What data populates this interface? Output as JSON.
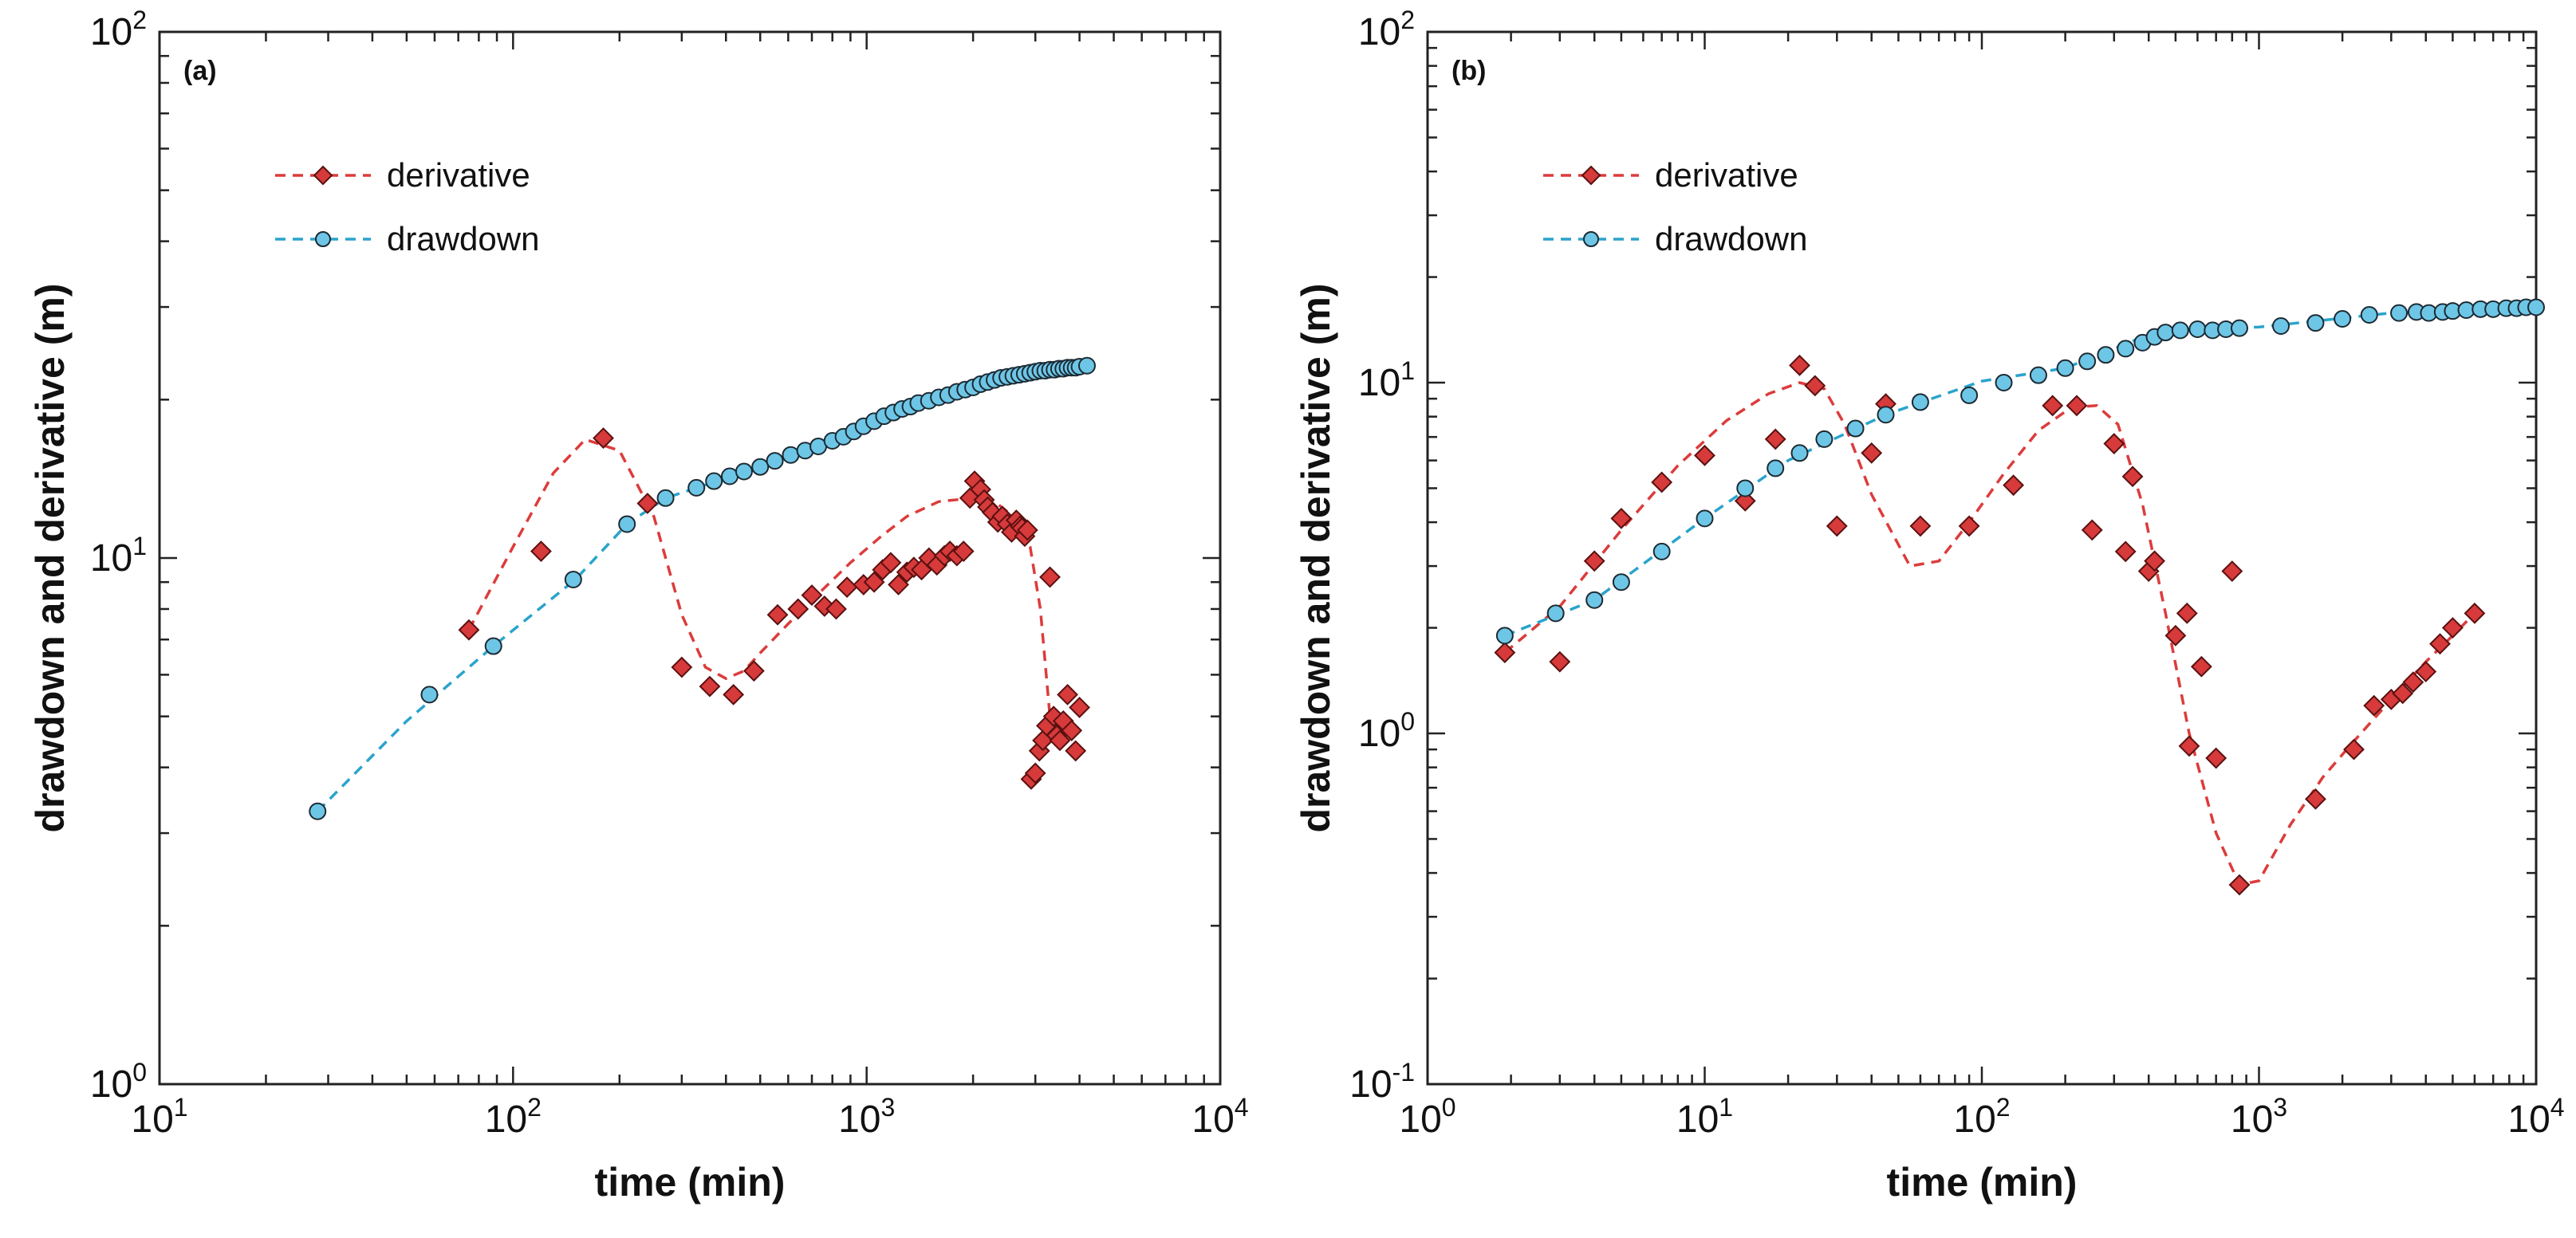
{
  "chart_data": [
    {
      "type": "scatter",
      "panel_label": "(a)",
      "xlabel": "time (min)",
      "ylabel": "drawdown and derivative (m)",
      "xscale": "log",
      "yscale": "log",
      "xlim": [
        10,
        10000
      ],
      "ylim": [
        1,
        100
      ],
      "x_ticks": [
        {
          "base": "10",
          "exp": "1"
        },
        {
          "base": "10",
          "exp": "2"
        },
        {
          "base": "10",
          "exp": "3"
        },
        {
          "base": "10",
          "exp": "4"
        }
      ],
      "y_ticks": [
        {
          "base": "10",
          "exp": "0"
        },
        {
          "base": "10",
          "exp": "1"
        },
        {
          "base": "10",
          "exp": "2"
        }
      ],
      "legend": {
        "position": "top-left",
        "entries": [
          "derivative",
          "drawdown"
        ]
      },
      "series": [
        {
          "name": "derivative",
          "marker": "diamond",
          "color": "#d63a3a",
          "x": [
            75,
            120,
            180,
            240,
            300,
            360,
            420,
            480,
            560,
            640,
            700,
            760,
            820,
            880,
            980,
            1050,
            1110,
            1170,
            1230,
            1300,
            1360,
            1430,
            1500,
            1580,
            1660,
            1720,
            1800,
            1880,
            1960,
            2020,
            2100,
            2150,
            2200,
            2270,
            2350,
            2420,
            2500,
            2570,
            2650,
            2720,
            2750,
            2800,
            2850,
            2920,
            3000,
            3080,
            3150,
            3230,
            3300,
            3380,
            3450,
            3520,
            3600,
            3700,
            3800,
            3900,
            4000
          ],
          "values": [
            7.3,
            10.3,
            16.9,
            12.7,
            6.2,
            5.7,
            5.5,
            6.1,
            7.8,
            8.0,
            8.5,
            8.1,
            8.0,
            8.8,
            8.9,
            9.0,
            9.5,
            9.8,
            8.9,
            9.4,
            9.6,
            9.5,
            10.0,
            9.7,
            10.1,
            10.3,
            10.1,
            10.3,
            13.0,
            14.0,
            13.5,
            12.9,
            12.5,
            12.2,
            11.7,
            12.0,
            11.6,
            11.2,
            11.8,
            11.5,
            11.4,
            11.0,
            11.3,
            3.8,
            3.9,
            4.3,
            4.5,
            4.8,
            9.2,
            5.0,
            4.6,
            4.5,
            4.9,
            5.5,
            4.7,
            4.3,
            5.2
          ],
          "fit": {
            "x": [
              75,
              100,
              130,
              160,
              200,
              250,
              300,
              350,
              400,
              450,
              500,
              600,
              750,
              900,
              1100,
              1300,
              1600,
              2000,
              2300,
              2600,
              2900,
              3100,
              3300
            ],
            "values": [
              7.3,
              10.5,
              14.5,
              16.8,
              16.0,
              12.0,
              7.8,
              6.2,
              5.9,
              6.1,
              6.6,
              7.5,
              8.7,
              9.8,
              11.0,
              12.0,
              12.8,
              13.0,
              12.8,
              12.0,
              10.5,
              8.0,
              5.0
            ]
          }
        },
        {
          "name": "drawdown",
          "marker": "circle",
          "color": "#6ec6e6",
          "x": [
            28,
            58,
            88,
            148,
            210,
            270,
            330,
            370,
            410,
            450,
            500,
            550,
            610,
            670,
            730,
            800,
            860,
            920,
            980,
            1050,
            1120,
            1190,
            1260,
            1330,
            1400,
            1500,
            1600,
            1700,
            1800,
            1900,
            2000,
            2100,
            2200,
            2300,
            2400,
            2500,
            2600,
            2700,
            2800,
            2900,
            3000,
            3100,
            3200,
            3300,
            3400,
            3500,
            3600,
            3700,
            3800,
            3900,
            4000,
            4200
          ],
          "values": [
            3.3,
            5.5,
            6.8,
            9.1,
            11.6,
            13.0,
            13.6,
            14.0,
            14.3,
            14.6,
            14.9,
            15.3,
            15.7,
            16.0,
            16.3,
            16.7,
            17.0,
            17.4,
            17.8,
            18.2,
            18.6,
            18.9,
            19.2,
            19.4,
            19.7,
            19.9,
            20.2,
            20.4,
            20.7,
            20.9,
            21.1,
            21.4,
            21.6,
            21.8,
            22.0,
            22.1,
            22.2,
            22.3,
            22.4,
            22.5,
            22.6,
            22.7,
            22.7,
            22.8,
            22.8,
            22.9,
            22.9,
            23.0,
            23.0,
            23.0,
            23.1,
            23.2
          ],
          "fit": {
            "x": [
              28,
              50,
              88,
              150,
              210,
              270,
              500,
              1000,
              2000,
              3000,
              4200
            ],
            "values": [
              3.3,
              4.9,
              6.8,
              9.1,
              11.6,
              13.0,
              14.9,
              17.8,
              21.1,
              22.6,
              23.2
            ]
          }
        }
      ]
    },
    {
      "type": "scatter",
      "panel_label": "(b)",
      "xlabel": "time (min)",
      "ylabel": "drawdown and derivative (m)",
      "xscale": "log",
      "yscale": "log",
      "xlim": [
        1,
        10000
      ],
      "ylim": [
        0.1,
        100
      ],
      "x_ticks": [
        {
          "base": "10",
          "exp": "0"
        },
        {
          "base": "10",
          "exp": "1"
        },
        {
          "base": "10",
          "exp": "2"
        },
        {
          "base": "10",
          "exp": "3"
        },
        {
          "base": "10",
          "exp": "4"
        }
      ],
      "y_ticks": [
        {
          "base": "10",
          "exp": "-1"
        },
        {
          "base": "10",
          "exp": "0"
        },
        {
          "base": "10",
          "exp": "1"
        },
        {
          "base": "10",
          "exp": "2"
        }
      ],
      "legend": {
        "position": "top-left",
        "entries": [
          "derivative",
          "drawdown"
        ]
      },
      "series": [
        {
          "name": "derivative",
          "marker": "diamond",
          "color": "#d63a3a",
          "x": [
            1.9,
            3,
            4,
            5,
            7,
            10,
            14,
            18,
            22,
            25,
            30,
            40,
            45,
            60,
            90,
            130,
            180,
            220,
            250,
            300,
            330,
            350,
            400,
            420,
            500,
            550,
            560,
            620,
            700,
            800,
            850,
            1600,
            2200,
            2600,
            3000,
            3300,
            3600,
            4000,
            4500,
            5000,
            6000
          ],
          "values": [
            1.7,
            1.6,
            3.1,
            4.1,
            5.2,
            6.2,
            4.6,
            6.9,
            11.2,
            9.8,
            3.9,
            6.3,
            8.7,
            3.9,
            3.9,
            5.1,
            8.6,
            8.6,
            3.8,
            6.7,
            3.3,
            5.4,
            2.9,
            3.1,
            1.9,
            2.2,
            0.92,
            1.55,
            0.85,
            2.9,
            0.37,
            0.65,
            0.9,
            1.2,
            1.25,
            1.3,
            1.4,
            1.5,
            1.8,
            2.0,
            2.2
          ],
          "fit": {
            "x": [
              1.9,
              3,
              5,
              8,
              12,
              17,
              22,
              27,
              32,
              40,
              55,
              70,
              90,
              120,
              160,
              210,
              260,
              310,
              380,
              460,
              560,
              700,
              850,
              1000,
              1300,
              1700,
              2200,
              3000,
              4000,
              5000,
              6000
            ],
            "values": [
              1.7,
              2.3,
              3.8,
              5.8,
              7.8,
              9.3,
              10.0,
              9.6,
              7.6,
              4.8,
              3.0,
              3.1,
              4.0,
              5.5,
              7.3,
              8.5,
              8.6,
              7.6,
              4.5,
              2.2,
              1.0,
              0.52,
              0.37,
              0.38,
              0.55,
              0.75,
              0.95,
              1.25,
              1.6,
              1.9,
              2.2
            ]
          }
        },
        {
          "name": "drawdown",
          "marker": "circle",
          "color": "#6ec6e6",
          "x": [
            1.9,
            2.9,
            4,
            5,
            7,
            10,
            14,
            18,
            22,
            27,
            35,
            45,
            60,
            90,
            120,
            160,
            200,
            240,
            280,
            330,
            380,
            420,
            460,
            520,
            600,
            680,
            760,
            850,
            1200,
            1600,
            2000,
            2500,
            3200,
            3700,
            4100,
            4600,
            5000,
            5600,
            6300,
            7000,
            7800,
            8500,
            9200,
            10000
          ],
          "values": [
            1.9,
            2.2,
            2.4,
            2.7,
            3.3,
            4.1,
            5.0,
            5.7,
            6.3,
            6.9,
            7.4,
            8.1,
            8.8,
            9.2,
            10.0,
            10.5,
            11.0,
            11.5,
            12.0,
            12.5,
            13.0,
            13.5,
            13.9,
            14.1,
            14.2,
            14.1,
            14.2,
            14.3,
            14.5,
            14.8,
            15.2,
            15.6,
            15.8,
            15.9,
            15.8,
            15.9,
            16.0,
            16.1,
            16.2,
            16.2,
            16.3,
            16.3,
            16.4,
            16.4
          ],
          "fit": {
            "x": [
              1.9,
              4,
              10,
              20,
              45,
              100,
              200,
              400,
              600,
              1000,
              3000,
              10000
            ],
            "values": [
              1.9,
              2.4,
              4.1,
              6.0,
              8.1,
              10.1,
              11.0,
              13.7,
              14.2,
              14.4,
              15.8,
              16.4
            ]
          }
        }
      ]
    }
  ]
}
